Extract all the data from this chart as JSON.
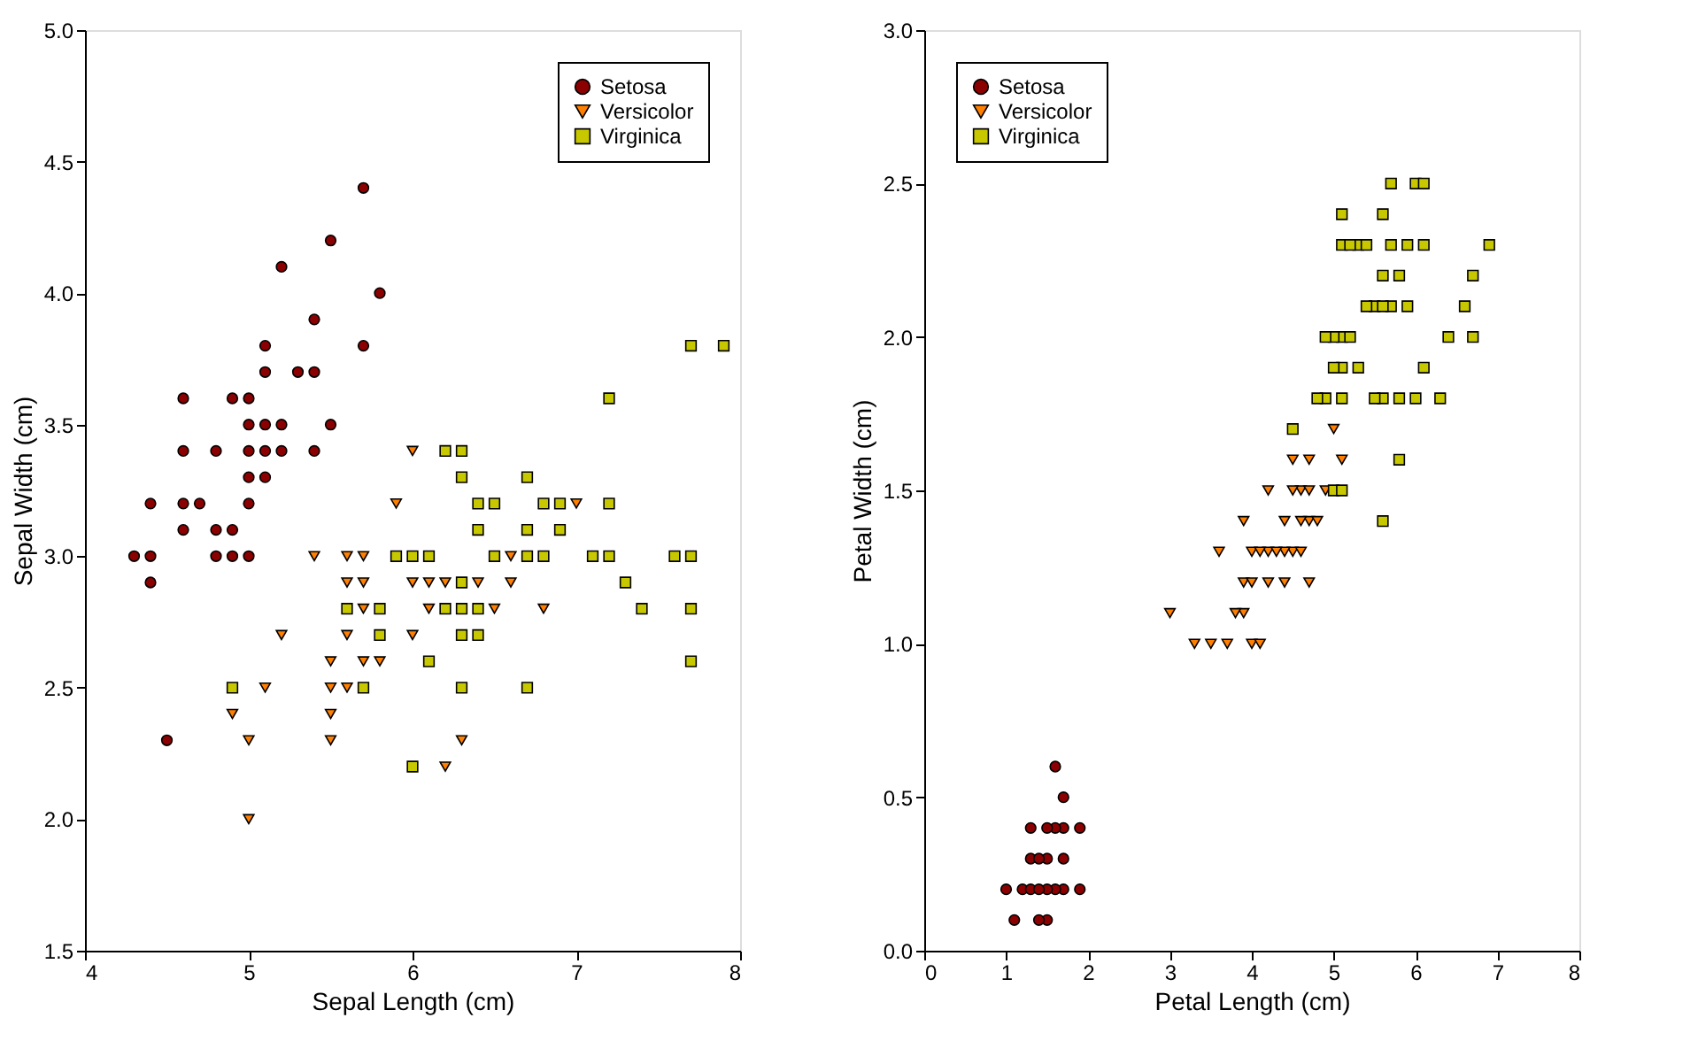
{
  "chart_data": [
    {
      "type": "scatter",
      "xlabel": "Sepal Length (cm)",
      "ylabel": "Sepal Width (cm)",
      "xlim": [
        4,
        8
      ],
      "xticks": [
        4,
        5,
        6,
        7,
        8
      ],
      "ylim": [
        1.5,
        5.0
      ],
      "yticks": [
        1.5,
        {
          "value": 2,
          "label": "2.0"
        },
        2.5,
        {
          "value": 3,
          "label": "3.0"
        },
        3.5,
        {
          "value": 4,
          "label": "4.0"
        },
        4.5,
        {
          "value": 5,
          "label": "5.0"
        }
      ],
      "grid": false,
      "legend": "top right",
      "series": [
        {
          "name": "Setosa",
          "color": "#8b0000",
          "marker": "circle",
          "x": [
            4.9,
            4.6,
            5.0,
            4.6,
            4.4,
            5.4,
            4.3,
            5.8,
            5.7,
            5.4,
            5.1,
            5.7,
            5.1,
            4.6,
            5.1,
            4.8,
            5.0,
            5.0,
            5.2,
            5.2,
            4.7,
            4.8,
            5.4,
            5.2,
            5.5,
            4.9,
            5.0,
            5.5,
            4.9,
            4.4,
            5.1,
            4.5,
            4.4,
            5.0,
            4.8,
            5.1,
            4.6,
            5.3,
            5.0
          ],
          "values": [
            3.0,
            3.1,
            3.6,
            3.4,
            2.9,
            3.7,
            3.0,
            4.0,
            4.4,
            3.9,
            3.5,
            3.8,
            3.7,
            3.6,
            3.3,
            3.4,
            3.0,
            3.4,
            3.5,
            3.4,
            3.2,
            3.1,
            3.4,
            4.1,
            4.2,
            3.1,
            3.2,
            3.5,
            3.6,
            3.0,
            3.4,
            2.3,
            3.2,
            3.5,
            3.0,
            3.8,
            3.2,
            3.7,
            3.3
          ]
        },
        {
          "name": "Versicolor",
          "color": "#ff8000",
          "marker": "triangle",
          "x": [
            7.0,
            5.5,
            6.5,
            4.9,
            6.6,
            5.2,
            5.0,
            6.1,
            5.6,
            6.2,
            5.6,
            5.9,
            6.1,
            6.4,
            6.6,
            6.8,
            6.0,
            5.7,
            5.5,
            6.0,
            5.4,
            6.0,
            6.3,
            5.6,
            5.5,
            5.5,
            5.8,
            5.0,
            5.6,
            5.7,
            5.7,
            6.2,
            5.1,
            5.7
          ],
          "values": [
            3.2,
            2.3,
            2.8,
            2.4,
            2.9,
            2.7,
            2.0,
            2.9,
            2.9,
            2.2,
            2.5,
            3.2,
            2.8,
            2.9,
            3.0,
            2.8,
            2.9,
            2.6,
            2.4,
            2.7,
            3.0,
            3.4,
            2.3,
            3.0,
            2.5,
            2.6,
            2.6,
            2.3,
            2.7,
            3.0,
            2.9,
            2.9,
            2.5,
            2.8
          ]
        },
        {
          "name": "Virginica",
          "color": "#c8c800",
          "marker": "square",
          "x": [
            6.3,
            7.1,
            6.3,
            7.6,
            4.9,
            7.3,
            6.7,
            7.2,
            6.5,
            6.4,
            6.8,
            5.7,
            5.8,
            6.4,
            7.7,
            7.7,
            6.0,
            6.9,
            5.6,
            7.7,
            6.3,
            7.2,
            6.2,
            6.1,
            7.2,
            7.4,
            7.9,
            6.4,
            6.3,
            6.1,
            7.7,
            6.3,
            6.4,
            6.0,
            6.7,
            6.9,
            5.8,
            6.8,
            6.7,
            6.7,
            6.3,
            6.5,
            6.2,
            5.9
          ],
          "values": [
            3.3,
            3.0,
            2.9,
            3.0,
            2.5,
            2.9,
            2.5,
            3.6,
            3.2,
            2.7,
            3.0,
            2.5,
            2.8,
            3.2,
            3.8,
            2.6,
            2.2,
            3.2,
            2.8,
            2.8,
            2.7,
            3.2,
            2.8,
            3.0,
            3.0,
            2.8,
            3.8,
            2.8,
            2.8,
            2.6,
            3.0,
            3.4,
            3.1,
            3.0,
            3.1,
            3.1,
            2.7,
            3.2,
            3.3,
            3.0,
            2.5,
            3.0,
            3.4,
            3.0
          ]
        }
      ]
    },
    {
      "type": "scatter",
      "xlabel": "Petal Length (cm)",
      "ylabel": "Petal Width (cm)",
      "xlim": [
        0,
        8
      ],
      "xticks": [
        0,
        1,
        2,
        3,
        4,
        5,
        6,
        7,
        8
      ],
      "ylim": [
        0,
        3
      ],
      "yticks": [
        {
          "value": 0,
          "label": "0.0"
        },
        0.5,
        {
          "value": 1,
          "label": "1.0"
        },
        1.5,
        {
          "value": 2,
          "label": "2.0"
        },
        2.5,
        {
          "value": 3,
          "label": "3.0"
        }
      ],
      "grid": false,
      "legend": "top left",
      "series": [
        {
          "name": "Setosa",
          "color": "#8b0000",
          "marker": "circle",
          "x": [
            1.7,
            1.1,
            1.3,
            1.7,
            1.5,
            1.7,
            1.0,
            1.7,
            1.9,
            1.6,
            1.5,
            1.5,
            1.2,
            1.4,
            1.3,
            1.3,
            1.6,
            1.9,
            1.4,
            1.6,
            1.5,
            1.4
          ],
          "values": [
            0.4,
            0.1,
            0.4,
            0.3,
            0.3,
            0.2,
            0.2,
            0.5,
            0.2,
            0.4,
            0.4,
            0.1,
            0.2,
            0.1,
            0.3,
            0.2,
            0.6,
            0.4,
            0.3,
            0.2,
            0.2,
            0.2
          ]
        },
        {
          "name": "Versicolor",
          "color": "#ff8000",
          "marker": "triangle",
          "x": [
            4.6,
            4.5,
            4.7,
            4.6,
            3.9,
            4.2,
            4.0,
            4.7,
            3.6,
            4.1,
            3.9,
            4.9,
            4.7,
            4.4,
            4.8,
            5.0,
            3.5,
            3.8,
            3.7,
            3.9,
            5.1,
            4.5,
            4.5,
            4.7,
            4.4,
            4.0,
            4.4,
            4.6,
            4.0,
            3.3,
            4.2,
            4.2,
            4.3,
            3.0,
            4.1
          ],
          "values": [
            1.5,
            1.3,
            1.6,
            1.3,
            1.4,
            1.5,
            1.0,
            1.4,
            1.3,
            1.0,
            1.1,
            1.5,
            1.2,
            1.4,
            1.4,
            1.7,
            1.0,
            1.1,
            1.0,
            1.2,
            1.6,
            1.5,
            1.6,
            1.5,
            1.3,
            1.3,
            1.2,
            1.4,
            1.2,
            1.0,
            1.2,
            1.3,
            1.3,
            1.1,
            1.3
          ]
        },
        {
          "name": "Virginica",
          "color": "#c8c800",
          "marker": "square",
          "x": [
            6.0,
            5.9,
            5.6,
            5.8,
            6.6,
            4.5,
            6.3,
            5.8,
            6.1,
            5.1,
            5.3,
            5.5,
            5.0,
            5.1,
            5.3,
            6.7,
            6.9,
            5.0,
            5.7,
            4.9,
            6.7,
            5.7,
            6.0,
            4.9,
            5.6,
            5.8,
            6.1,
            6.4,
            5.6,
            5.1,
            5.6,
            6.1,
            5.5,
            4.8,
            5.4,
            5.6,
            5.1,
            5.1,
            5.9,
            5.7,
            5.2,
            5.0,
            5.2,
            5.4,
            5.1
          ],
          "values": [
            2.5,
            2.1,
            1.8,
            2.2,
            2.1,
            1.7,
            1.8,
            1.8,
            2.5,
            2.0,
            1.9,
            2.1,
            2.0,
            2.4,
            2.3,
            2.2,
            2.3,
            1.5,
            2.3,
            2.0,
            2.0,
            2.1,
            1.8,
            1.8,
            2.1,
            1.6,
            1.9,
            2.0,
            2.2,
            1.5,
            1.4,
            2.3,
            1.8,
            1.8,
            2.1,
            2.4,
            2.3,
            1.9,
            2.3,
            2.5,
            2.3,
            1.9,
            2.0,
            2.3,
            1.8
          ]
        }
      ]
    }
  ]
}
